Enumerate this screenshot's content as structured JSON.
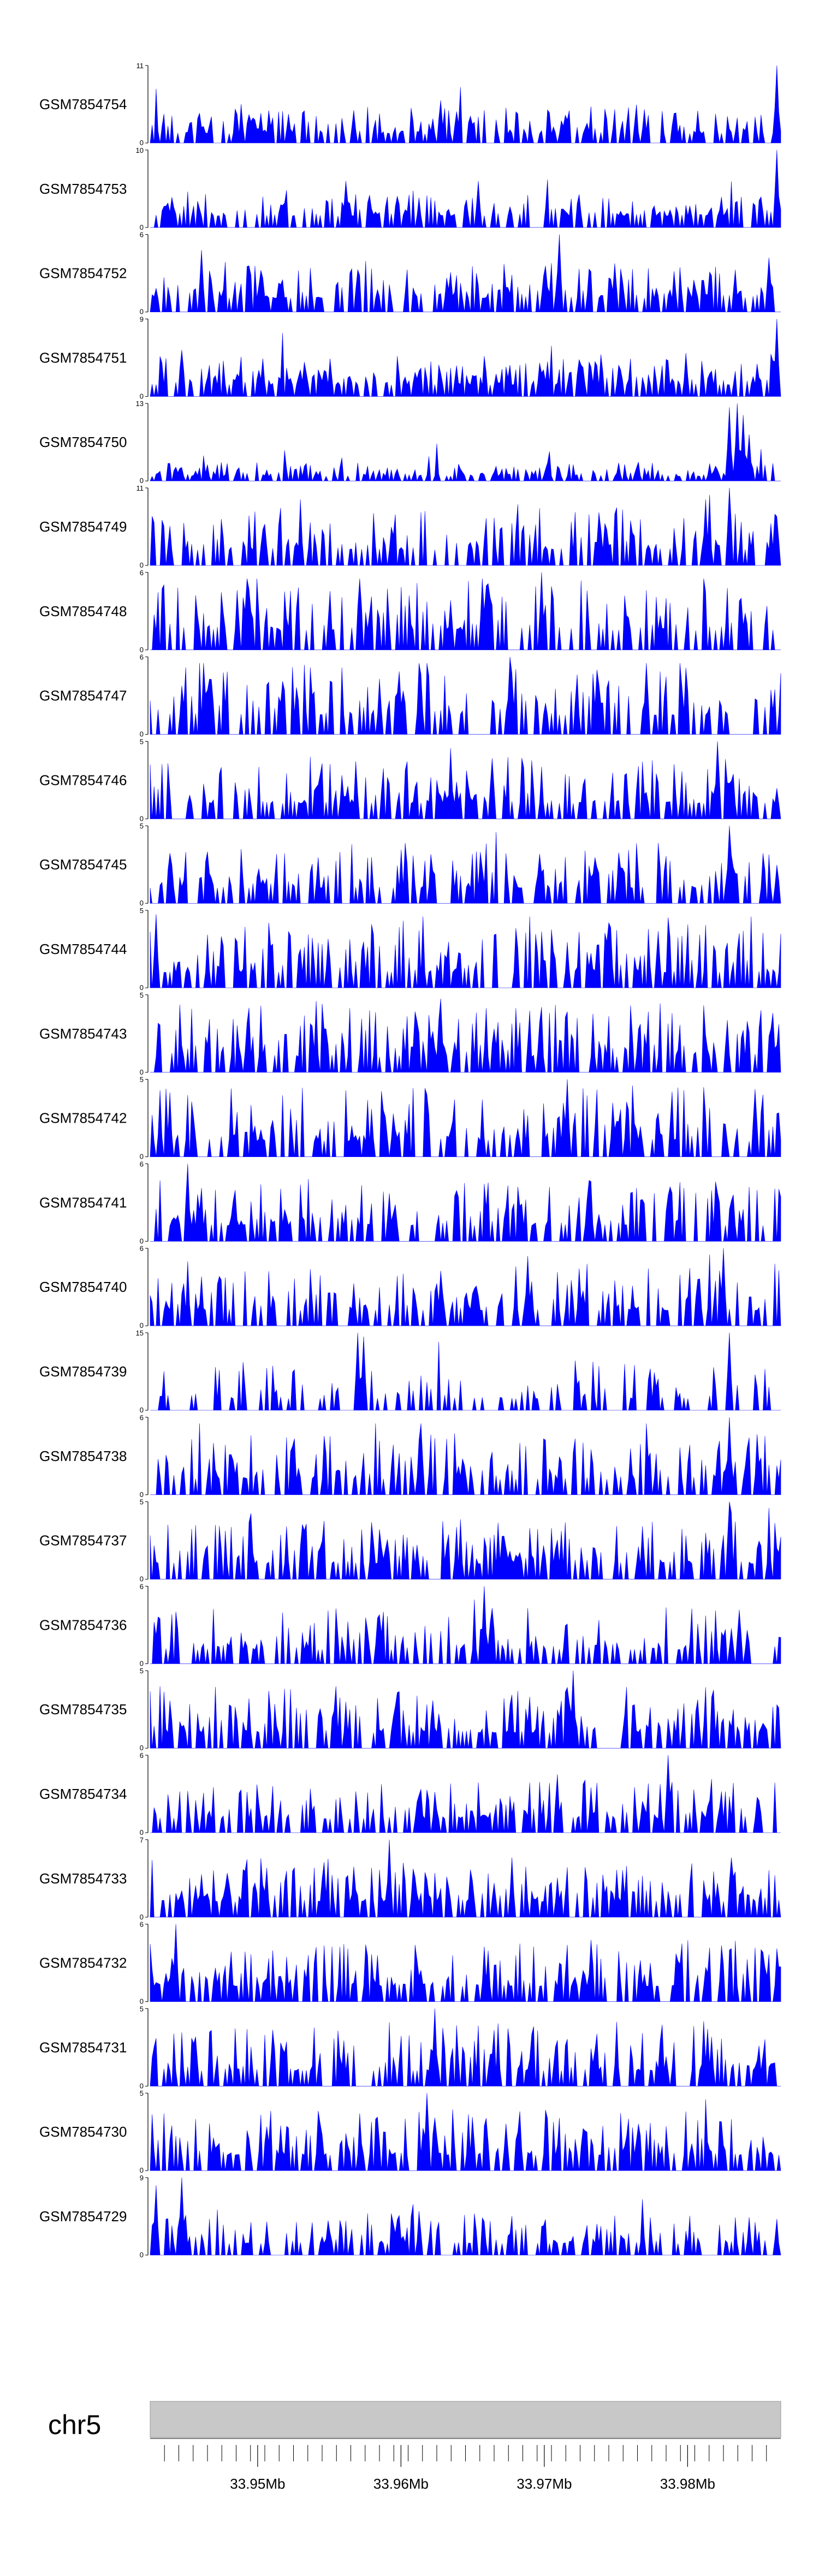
{
  "chart_data": {
    "type": "area",
    "colors": {
      "signal": "#0000ff",
      "ideogram": "#c8c8c8",
      "axis": "#000000"
    },
    "tracks": [
      {
        "name": "GSM7854754",
        "ymax": 11,
        "ymin": 0,
        "seed": 11,
        "dens": 0.55,
        "base": 0.12,
        "spread": 0.35,
        "peaks": [
          [
            0.46,
            0.55
          ],
          [
            0.995,
            1.0
          ]
        ]
      },
      {
        "name": "GSM7854753",
        "ymax": 10,
        "ymin": 0,
        "seed": 23,
        "dens": 0.55,
        "base": 0.15,
        "spread": 0.3,
        "peaks": [
          [
            0.31,
            0.6
          ],
          [
            0.52,
            0.6
          ],
          [
            0.995,
            1.0
          ]
        ]
      },
      {
        "name": "GSM7854752",
        "ymax": 6,
        "ymin": 0,
        "seed": 37,
        "dens": 0.6,
        "base": 0.18,
        "spread": 0.45,
        "peaks": [
          [
            0.08,
            0.8
          ],
          [
            0.65,
            1.0
          ],
          [
            0.98,
            0.7
          ]
        ]
      },
      {
        "name": "GSM7854751",
        "ymax": 9,
        "ymin": 0,
        "seed": 41,
        "dens": 0.6,
        "base": 0.15,
        "spread": 0.4,
        "peaks": [
          [
            0.05,
            0.6
          ],
          [
            0.63,
            0.45
          ],
          [
            0.995,
            1.0
          ]
        ]
      },
      {
        "name": "GSM7854750",
        "ymax": 13,
        "ymin": 0,
        "seed": 53,
        "dens": 0.6,
        "base": 0.06,
        "spread": 0.18,
        "peaks": [
          [
            0.92,
            0.95
          ],
          [
            0.93,
            1.0
          ],
          [
            0.94,
            0.85
          ],
          [
            0.95,
            0.6
          ]
        ]
      },
      {
        "name": "GSM7854749",
        "ymax": 11,
        "ymin": 0,
        "seed": 67,
        "dens": 0.45,
        "base": 0.2,
        "spread": 0.55,
        "peaks": [
          [
            0.92,
            1.0
          ],
          [
            0.88,
            0.85
          ]
        ]
      },
      {
        "name": "GSM7854748",
        "ymax": 6,
        "ymin": 0,
        "seed": 79,
        "dens": 0.5,
        "base": 0.25,
        "spread": 0.7,
        "peaks": [
          [
            0.62,
            1.0
          ]
        ]
      },
      {
        "name": "GSM7854747",
        "ymax": 6,
        "ymin": 0,
        "seed": 83,
        "dens": 0.5,
        "base": 0.25,
        "spread": 0.7,
        "peaks": [
          [
            0.57,
            1.0
          ]
        ]
      },
      {
        "name": "GSM7854746",
        "ymax": 5,
        "ymin": 0,
        "seed": 97,
        "dens": 0.55,
        "base": 0.2,
        "spread": 0.6,
        "peaks": [
          [
            0.9,
            1.0
          ]
        ]
      },
      {
        "name": "GSM7854745",
        "ymax": 5,
        "ymin": 0,
        "seed": 101,
        "dens": 0.55,
        "base": 0.2,
        "spread": 0.6,
        "peaks": [
          [
            0.92,
            1.0
          ]
        ]
      },
      {
        "name": "GSM7854744",
        "ymax": 5,
        "ymin": 0,
        "seed": 113,
        "dens": 0.55,
        "base": 0.2,
        "spread": 0.7,
        "peaks": [
          [
            0.01,
            0.95
          ]
        ]
      },
      {
        "name": "GSM7854743",
        "ymax": 5,
        "ymin": 0,
        "seed": 127,
        "dens": 0.55,
        "base": 0.2,
        "spread": 0.7,
        "peaks": [
          [
            0.46,
            0.95
          ]
        ]
      },
      {
        "name": "GSM7854742",
        "ymax": 5,
        "ymin": 0,
        "seed": 131,
        "dens": 0.55,
        "base": 0.2,
        "spread": 0.7,
        "peaks": [
          [
            0.66,
            1.0
          ]
        ]
      },
      {
        "name": "GSM7854741",
        "ymax": 6,
        "ymin": 0,
        "seed": 139,
        "dens": 0.55,
        "base": 0.2,
        "spread": 0.6,
        "peaks": [
          [
            0.06,
            1.0
          ]
        ]
      },
      {
        "name": "GSM7854740",
        "ymax": 6,
        "ymin": 0,
        "seed": 149,
        "dens": 0.5,
        "base": 0.2,
        "spread": 0.6,
        "peaks": [
          [
            0.91,
            1.0
          ],
          [
            0.6,
            0.9
          ]
        ]
      },
      {
        "name": "GSM7854739",
        "ymax": 15,
        "ymin": 0,
        "seed": 151,
        "dens": 0.35,
        "base": 0.15,
        "spread": 0.5,
        "peaks": [
          [
            0.33,
            1.0
          ],
          [
            0.34,
            0.95
          ],
          [
            0.92,
            1.0
          ]
        ]
      },
      {
        "name": "GSM7854738",
        "ymax": 6,
        "ymin": 0,
        "seed": 163,
        "dens": 0.5,
        "base": 0.2,
        "spread": 0.6,
        "peaks": [
          [
            0.92,
            1.0
          ]
        ]
      },
      {
        "name": "GSM7854737",
        "ymax": 5,
        "ymin": 0,
        "seed": 173,
        "dens": 0.55,
        "base": 0.2,
        "spread": 0.6,
        "peaks": [
          [
            0.16,
            0.85
          ],
          [
            0.92,
            1.0
          ]
        ]
      },
      {
        "name": "GSM7854736",
        "ymax": 6,
        "ymin": 0,
        "seed": 181,
        "dens": 0.55,
        "base": 0.18,
        "spread": 0.55,
        "peaks": [
          [
            0.53,
            1.0
          ]
        ]
      },
      {
        "name": "GSM7854735",
        "ymax": 5,
        "ymin": 0,
        "seed": 191,
        "dens": 0.55,
        "base": 0.2,
        "spread": 0.6,
        "peaks": [
          [
            0.67,
            1.0
          ]
        ]
      },
      {
        "name": "GSM7854734",
        "ymax": 6,
        "ymin": 0,
        "seed": 197,
        "dens": 0.55,
        "base": 0.18,
        "spread": 0.5,
        "peaks": [
          [
            0.82,
            1.0
          ]
        ]
      },
      {
        "name": "GSM7854733",
        "ymax": 7,
        "ymin": 0,
        "seed": 211,
        "dens": 0.55,
        "base": 0.2,
        "spread": 0.6,
        "peaks": [
          [
            0.38,
            1.0
          ]
        ]
      },
      {
        "name": "GSM7854732",
        "ymax": 6,
        "ymin": 0,
        "seed": 223,
        "dens": 0.55,
        "base": 0.2,
        "spread": 0.55,
        "peaks": [
          [
            0.04,
            1.0
          ]
        ]
      },
      {
        "name": "GSM7854731",
        "ymax": 5,
        "ymin": 0,
        "seed": 227,
        "dens": 0.55,
        "base": 0.2,
        "spread": 0.65,
        "peaks": [
          [
            0.45,
            1.0
          ]
        ]
      },
      {
        "name": "GSM7854730",
        "ymax": 5,
        "ymin": 0,
        "seed": 229,
        "dens": 0.55,
        "base": 0.2,
        "spread": 0.6,
        "peaks": [
          [
            0.44,
            1.0
          ]
        ]
      },
      {
        "name": "GSM7854729",
        "ymax": 9,
        "ymin": 0,
        "seed": 233,
        "dens": 0.5,
        "base": 0.15,
        "spread": 0.4,
        "peaks": [
          [
            0.05,
            1.0
          ],
          [
            0.01,
            0.9
          ]
        ]
      }
    ],
    "chromosome": "chr5",
    "xrange_mb": [
      33.9425,
      33.9865
    ],
    "xticks_mb": [
      33.95,
      33.96,
      33.97,
      33.98
    ],
    "xtick_labels": [
      "33.95Mb",
      "33.96Mb",
      "33.97Mb",
      "33.98Mb"
    ],
    "minor_tick_step_mb": 0.001,
    "xlabel": ""
  }
}
